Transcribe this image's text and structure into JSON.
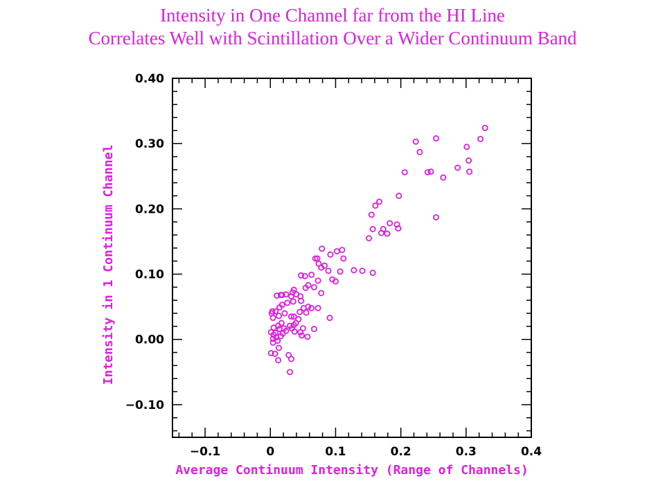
{
  "header": {
    "title_line1": "Intensity in One Channel far from the HI Line",
    "title_line2": "Correlates Well with Scintillation Over a Wider Continuum Band"
  },
  "colors": {
    "accent": "#e020e0",
    "axis": "#000000",
    "background": "#ffffff"
  },
  "chart_data": {
    "type": "scatter",
    "title": "Intensity in One Channel far from the HI Line / Correlates Well with Scintillation Over a Wider Continuum Band",
    "xlabel": "Average Continuum Intensity (Range of Channels)",
    "ylabel": "Intensity in 1 Continuum Channel",
    "xlim": [
      -0.15,
      0.4
    ],
    "ylim": [
      -0.15,
      0.4
    ],
    "xticks": [
      -0.1,
      0,
      0.1,
      0.2,
      0.3,
      0.4
    ],
    "xtick_labels": [
      "-0.1",
      "0",
      "0.1",
      "0.2",
      "0.3",
      "0.4"
    ],
    "yticks": [
      -0.1,
      0,
      0.1,
      0.2,
      0.3,
      0.4
    ],
    "ytick_labels": [
      "-0.10",
      "0.00",
      "0.10",
      "0.20",
      "0.30",
      "0.40"
    ],
    "grid": false,
    "legend": "none",
    "marker": "open-circle",
    "points": [
      [
        0.223,
        0.303
      ],
      [
        0.254,
        0.308
      ],
      [
        0.329,
        0.324
      ],
      [
        0.322,
        0.307
      ],
      [
        0.229,
        0.287
      ],
      [
        0.301,
        0.295
      ],
      [
        0.304,
        0.274
      ],
      [
        0.287,
        0.263
      ],
      [
        0.241,
        0.256
      ],
      [
        0.246,
        0.257
      ],
      [
        0.305,
        0.257
      ],
      [
        0.265,
        0.248
      ],
      [
        0.206,
        0.256
      ],
      [
        0.197,
        0.22
      ],
      [
        0.167,
        0.211
      ],
      [
        0.161,
        0.205
      ],
      [
        0.155,
        0.191
      ],
      [
        0.254,
        0.187
      ],
      [
        0.183,
        0.178
      ],
      [
        0.194,
        0.176
      ],
      [
        0.196,
        0.17
      ],
      [
        0.157,
        0.169
      ],
      [
        0.173,
        0.169
      ],
      [
        0.17,
        0.163
      ],
      [
        0.179,
        0.162
      ],
      [
        0.151,
        0.155
      ],
      [
        0.079,
        0.139
      ],
      [
        0.11,
        0.137
      ],
      [
        0.092,
        0.13
      ],
      [
        0.102,
        0.135
      ],
      [
        0.069,
        0.124
      ],
      [
        0.072,
        0.124
      ],
      [
        0.112,
        0.124
      ],
      [
        0.074,
        0.116
      ],
      [
        0.083,
        0.113
      ],
      [
        0.089,
        0.105
      ],
      [
        0.128,
        0.106
      ],
      [
        0.141,
        0.105
      ],
      [
        0.107,
        0.104
      ],
      [
        0.078,
        0.11
      ],
      [
        0.047,
        0.098
      ],
      [
        0.053,
        0.097
      ],
      [
        0.063,
        0.099
      ],
      [
        0.157,
        0.102
      ],
      [
        0.073,
        0.09
      ],
      [
        0.095,
        0.092
      ],
      [
        0.1,
        0.089
      ],
      [
        0.058,
        0.083
      ],
      [
        0.067,
        0.08
      ],
      [
        0.054,
        0.079
      ],
      [
        0.036,
        0.076
      ],
      [
        0.034,
        0.072
      ],
      [
        0.04,
        0.069
      ],
      [
        0.032,
        0.066
      ],
      [
        0.024,
        0.069
      ],
      [
        0.016,
        0.068
      ],
      [
        0.078,
        0.071
      ],
      [
        0.046,
        0.066
      ],
      [
        0.01,
        0.067
      ],
      [
        0.047,
        0.059
      ],
      [
        0.035,
        0.058
      ],
      [
        0.026,
        0.056
      ],
      [
        0.058,
        0.05
      ],
      [
        0.063,
        0.048
      ],
      [
        0.073,
        0.048
      ],
      [
        0.051,
        0.048
      ],
      [
        0.018,
        0.053
      ],
      [
        0.014,
        0.049
      ],
      [
        0.003,
        0.043
      ],
      [
        0.002,
        0.04
      ],
      [
        0.008,
        0.043
      ],
      [
        0.022,
        0.04
      ],
      [
        0.045,
        0.042
      ],
      [
        0.055,
        0.041
      ],
      [
        0.032,
        0.035
      ],
      [
        0.036,
        0.035
      ],
      [
        0.013,
        0.036
      ],
      [
        0.004,
        0.033
      ],
      [
        0.043,
        0.031
      ],
      [
        0.091,
        0.033
      ],
      [
        0.039,
        0.025
      ],
      [
        0.036,
        0.022
      ],
      [
        0.03,
        0.021
      ],
      [
        0.017,
        0.025
      ],
      [
        0.012,
        0.021
      ],
      [
        0.021,
        0.017
      ],
      [
        0.033,
        0.017
      ],
      [
        0.05,
        0.017
      ],
      [
        0.067,
        0.016
      ],
      [
        0.005,
        0.018
      ],
      [
        0.014,
        0.016
      ],
      [
        0.024,
        0.013
      ],
      [
        0.008,
        0.01
      ],
      [
        0.001,
        0.011
      ],
      [
        0.046,
        0.011
      ],
      [
        0.037,
        0.012
      ],
      [
        0.019,
        0.009
      ],
      [
        0.005,
        0.007
      ],
      [
        0.016,
        0.005
      ],
      [
        0.009,
        0.003
      ],
      [
        0.004,
        0.001
      ],
      [
        0.057,
        0.004
      ],
      [
        0.048,
        0.006
      ],
      [
        0.011,
        -0.002
      ],
      [
        0.004,
        -0.005
      ],
      [
        0.013,
        -0.013
      ],
      [
        0.001,
        -0.021
      ],
      [
        0.007,
        -0.022
      ],
      [
        0.012,
        -0.032
      ],
      [
        0.028,
        -0.024
      ],
      [
        0.032,
        -0.03
      ],
      [
        0.03,
        -0.05
      ],
      [
        0.018,
        0.068
      ]
    ]
  }
}
